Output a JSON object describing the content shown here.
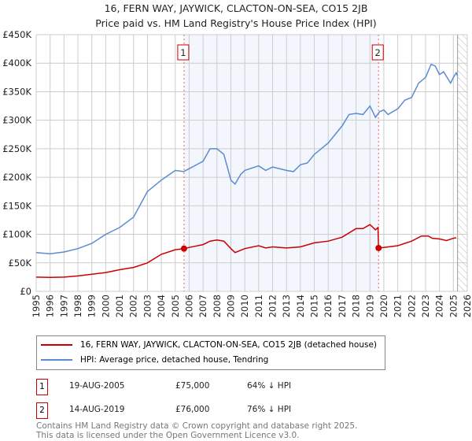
{
  "chart_data": {
    "type": "line",
    "title": "16, FERN WAY, JAYWICK, CLACTON-ON-SEA, CO15 2JB",
    "subtitle": "Price paid vs. HM Land Registry's House Price Index (HPI)",
    "xlim": [
      1995,
      2026
    ],
    "ylim": [
      0,
      450000
    ],
    "x_ticks": [
      "1995",
      "1996",
      "1997",
      "1998",
      "1999",
      "2000",
      "2001",
      "2002",
      "2003",
      "2004",
      "2005",
      "2006",
      "2007",
      "2008",
      "2009",
      "2010",
      "2011",
      "2012",
      "2013",
      "2014",
      "2015",
      "2016",
      "2017",
      "2018",
      "2019",
      "2020",
      "2021",
      "2022",
      "2023",
      "2024",
      "2025",
      "2026"
    ],
    "y_ticks": [
      {
        "v": 0,
        "label": "£0"
      },
      {
        "v": 50000,
        "label": "£50K"
      },
      {
        "v": 100000,
        "label": "£100K"
      },
      {
        "v": 150000,
        "label": "£150K"
      },
      {
        "v": 200000,
        "label": "£200K"
      },
      {
        "v": 250000,
        "label": "£250K"
      },
      {
        "v": 300000,
        "label": "£300K"
      },
      {
        "v": 350000,
        "label": "£350K"
      },
      {
        "v": 400000,
        "label": "£400K"
      },
      {
        "v": 450000,
        "label": "£450K"
      }
    ],
    "grid": true,
    "shaded_range": [
      2005.63,
      2019.62
    ],
    "forecast_start": 2025.3,
    "series": [
      {
        "name": "16, FERN WAY, JAYWICK, CLACTON-ON-SEA, CO15 2JB (detached house)",
        "color": "#cc0000",
        "x": [
          1995,
          1996,
          1997,
          1998,
          1999,
          2000,
          2001,
          2002,
          2003,
          2004,
          2005,
          2005.63,
          2006,
          2007,
          2007.5,
          2008,
          2008.5,
          2009,
          2009.3,
          2010,
          2011,
          2011.5,
          2012,
          2013,
          2014,
          2015,
          2016,
          2017,
          2018,
          2018.5,
          2019,
          2019.4,
          2019.58,
          2019.62,
          2020,
          2021,
          2022,
          2022.7,
          2023.2,
          2023.5,
          2024,
          2024.5,
          2025,
          2025.2
        ],
        "y": [
          25000,
          24500,
          25000,
          27000,
          30000,
          33000,
          38000,
          42000,
          50000,
          65000,
          73000,
          75000,
          77000,
          82000,
          88000,
          90000,
          88000,
          75000,
          68000,
          75000,
          80000,
          76000,
          78000,
          76000,
          78000,
          85000,
          88000,
          95000,
          110000,
          110000,
          117000,
          108000,
          112000,
          76000,
          77000,
          80000,
          88000,
          97000,
          97000,
          93000,
          92000,
          89000,
          93000,
          94000
        ]
      },
      {
        "name": "HPI: Average price, detached house, Tendring",
        "color": "#5b8bd0",
        "x": [
          1995,
          1996,
          1997,
          1998,
          1999,
          2000,
          2001,
          2002,
          2003,
          2004,
          2005,
          2005.6,
          2006,
          2007,
          2007.5,
          2008,
          2008.5,
          2009,
          2009.3,
          2009.7,
          2010,
          2011,
          2011.5,
          2012,
          2013,
          2013.5,
          2014,
          2014.5,
          2015,
          2016,
          2017,
          2017.5,
          2018,
          2018.5,
          2019,
          2019.4,
          2019.7,
          2020,
          2020.3,
          2021,
          2021.5,
          2022,
          2022.5,
          2023,
          2023.4,
          2023.7,
          2024,
          2024.3,
          2024.8,
          2025,
          2025.2,
          2025.3
        ],
        "y": [
          68000,
          66000,
          69000,
          75000,
          84000,
          100000,
          112000,
          130000,
          175000,
          195000,
          212000,
          210000,
          215000,
          228000,
          250000,
          250000,
          240000,
          195000,
          188000,
          205000,
          212000,
          220000,
          212000,
          218000,
          212000,
          210000,
          222000,
          225000,
          240000,
          260000,
          290000,
          310000,
          312000,
          310000,
          325000,
          305000,
          315000,
          318000,
          310000,
          320000,
          335000,
          340000,
          365000,
          375000,
          398000,
          395000,
          380000,
          385000,
          365000,
          375000,
          383000,
          378000
        ]
      }
    ],
    "markers": [
      {
        "label": "1",
        "x": 2005.63,
        "y": 75000
      },
      {
        "label": "2",
        "x": 2019.62,
        "y": 76000
      }
    ]
  },
  "legend": {
    "property": "16, FERN WAY, JAYWICK, CLACTON-ON-SEA, CO15 2JB (detached house)",
    "hpi": "HPI: Average price, detached house, Tendring"
  },
  "transactions": [
    {
      "num": "1",
      "date": "19-AUG-2005",
      "price": "£75,000",
      "delta": "64% ↓ HPI"
    },
    {
      "num": "2",
      "date": "14-AUG-2019",
      "price": "£76,000",
      "delta": "76% ↓ HPI"
    }
  ],
  "footer": {
    "line1": "Contains HM Land Registry data © Crown copyright and database right 2025.",
    "line2": "This data is licensed under the Open Government Licence v3.0."
  }
}
